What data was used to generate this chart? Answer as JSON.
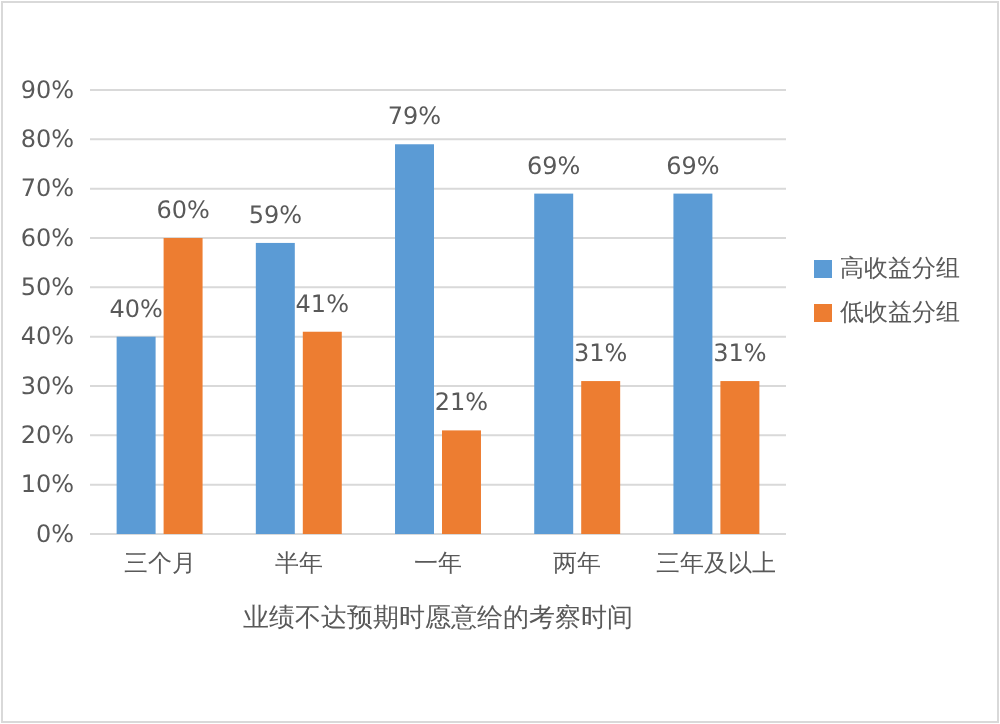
{
  "chart_data": {
    "type": "bar",
    "xlabel": "业绩不达预期时愿意给的考察时间",
    "categories": [
      "三个月",
      "半年",
      "一年",
      "两年",
      "三年及以上"
    ],
    "series": [
      {
        "name": "高收益分组",
        "color": "#5b9bd5",
        "values": [
          40,
          59,
          79,
          69,
          69
        ]
      },
      {
        "name": "低收益分组",
        "color": "#ed7d31",
        "values": [
          60,
          41,
          21,
          31,
          31
        ]
      }
    ],
    "ylim": [
      0,
      90
    ],
    "yticks": [
      {
        "value": 0,
        "label": "0%"
      },
      {
        "value": 10,
        "label": "10%"
      },
      {
        "value": 20,
        "label": "20%"
      },
      {
        "value": 30,
        "label": "30%"
      },
      {
        "value": 40,
        "label": "40%"
      },
      {
        "value": 50,
        "label": "50%"
      },
      {
        "value": 60,
        "label": "60%"
      },
      {
        "value": 70,
        "label": "70%"
      },
      {
        "value": 80,
        "label": "80%"
      },
      {
        "value": 90,
        "label": "90%"
      }
    ],
    "value_labels": [
      [
        "40%",
        "59%",
        "79%",
        "69%",
        "69%"
      ],
      [
        "60%",
        "41%",
        "21%",
        "31%",
        "31%"
      ]
    ],
    "grid": "y",
    "legend": "right"
  }
}
